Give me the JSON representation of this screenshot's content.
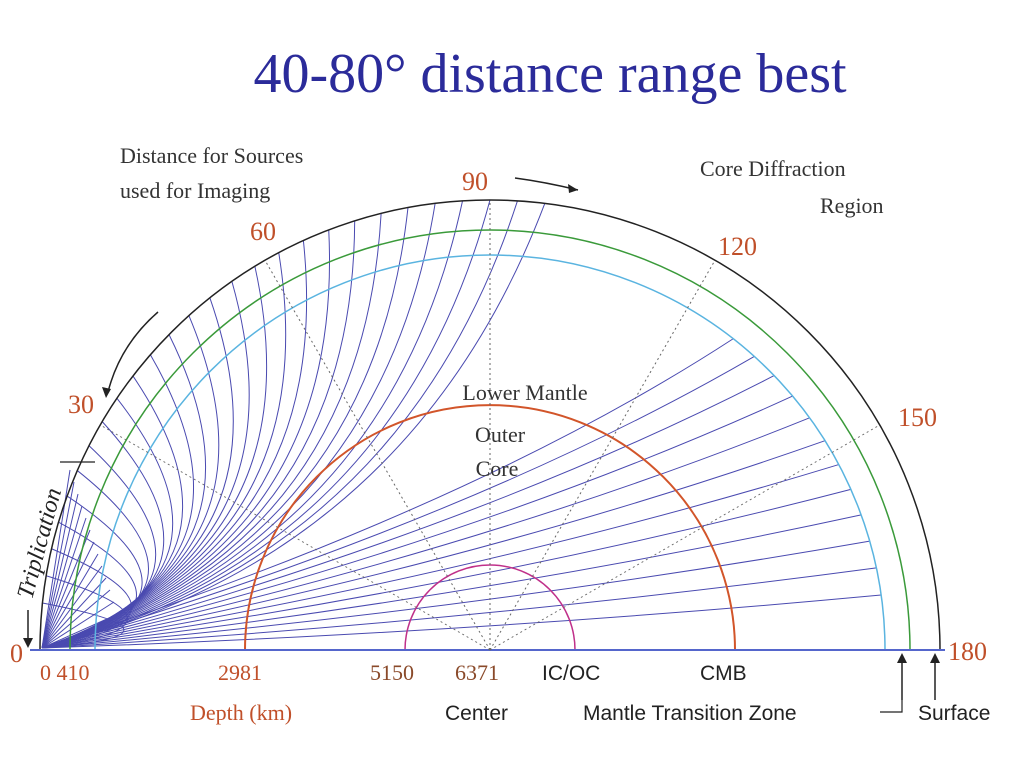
{
  "title": "40-80° distance range best",
  "diagram": {
    "sources_label": [
      "Distance for Sources",
      "used for Imaging"
    ],
    "core_diffraction_label": [
      "Core  Diffraction",
      "Region"
    ],
    "region_label": [
      "Lower Mantle",
      "Outer",
      "Core"
    ],
    "triplication_label": "Triplication",
    "angles": [
      0,
      30,
      60,
      90,
      120,
      150,
      180
    ],
    "depths": [
      "0 410",
      "2981",
      "5150",
      "6371"
    ],
    "ic_oc": "IC/OC",
    "cmb": "CMB",
    "depth_axis": "Depth (km)",
    "center": "Center",
    "mantle_transition_zone": "Mantle Transition Zone",
    "surface": "Surface"
  }
}
